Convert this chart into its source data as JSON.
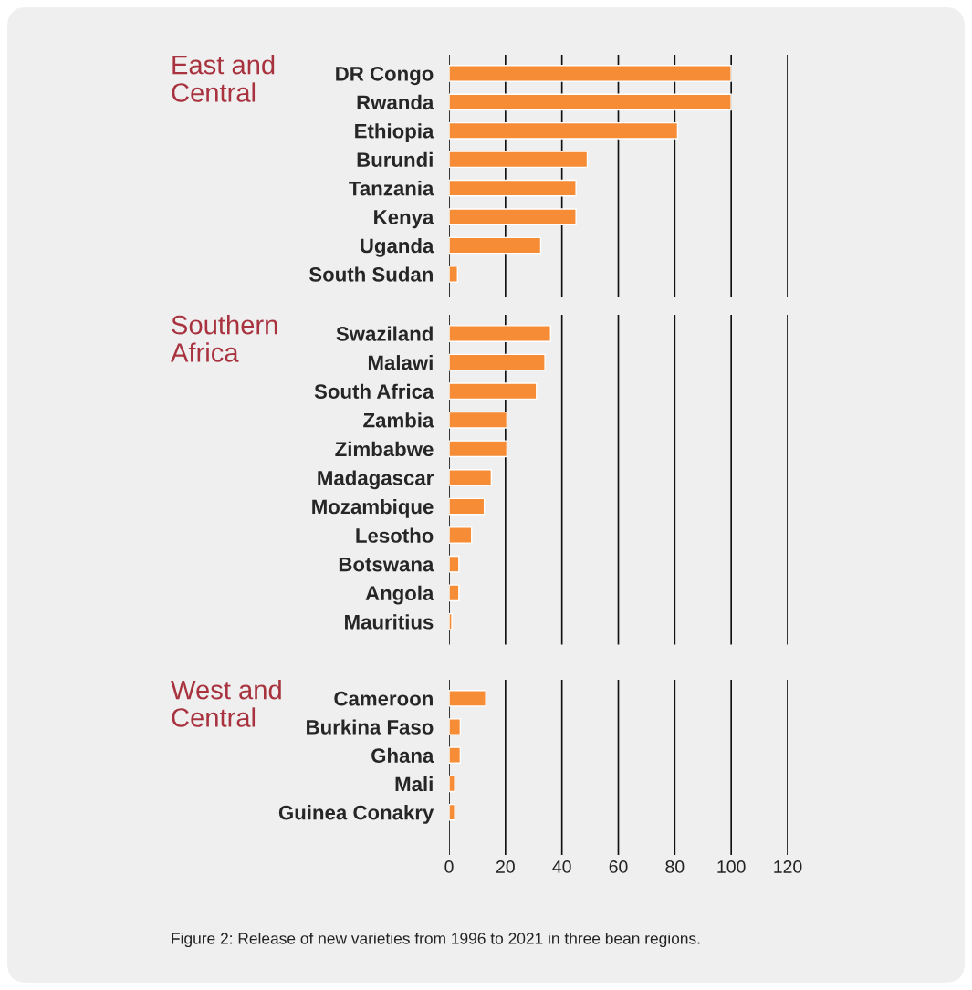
{
  "chart_data": [
    {
      "type": "bar",
      "orientation": "horizontal",
      "title": "East and\nCentral",
      "categories": [
        "DR Congo",
        "Rwanda",
        "Ethiopia",
        "Burundi",
        "Tanzania",
        "Kenya",
        "Uganda",
        "South Sudan"
      ],
      "series": [
        {
          "color": "#f68d36",
          "values": [
            100,
            100,
            81,
            49,
            45,
            45,
            32.5,
            3
          ]
        }
      ],
      "xlim": [
        0,
        120
      ],
      "xticks": [
        0,
        20,
        40,
        60,
        80,
        100,
        120
      ],
      "grid": "x",
      "tick_labels": "y"
    },
    {
      "type": "bar",
      "orientation": "horizontal",
      "title": "Southern\nAfrica",
      "categories": [
        "Swaziland",
        "Malawi",
        "South Africa",
        "Zambia",
        "Zimbabwe",
        "Madagascar",
        "Mozambique",
        "Lesotho",
        "Botswana",
        "Angola",
        "Mauritius"
      ],
      "series": [
        {
          "color": "#f68d36",
          "values": [
            36,
            34,
            31,
            20.5,
            20.5,
            15,
            12.5,
            8,
            3.5,
            3.5,
            1
          ]
        }
      ],
      "xlim": [
        0,
        120
      ],
      "xticks": [
        0,
        20,
        40,
        60,
        80,
        100,
        120
      ],
      "grid": "x",
      "tick_labels": "y"
    },
    {
      "type": "bar",
      "orientation": "horizontal",
      "title": "West and\nCentral",
      "categories": [
        "Cameroon",
        "Burkina Faso",
        "Ghana",
        "Mali",
        "Guinea Conakry"
      ],
      "series": [
        {
          "color": "#f68d36",
          "values": [
            13,
            4,
            4,
            2,
            2
          ]
        }
      ],
      "xlim": [
        0,
        120
      ],
      "xticks": [
        0,
        20,
        40,
        60,
        80,
        100,
        120
      ],
      "grid": "x",
      "annotations": [
        "Figure 2: Release of new varieties from 1996 to 2021 in three bean regions."
      ]
    }
  ]
}
